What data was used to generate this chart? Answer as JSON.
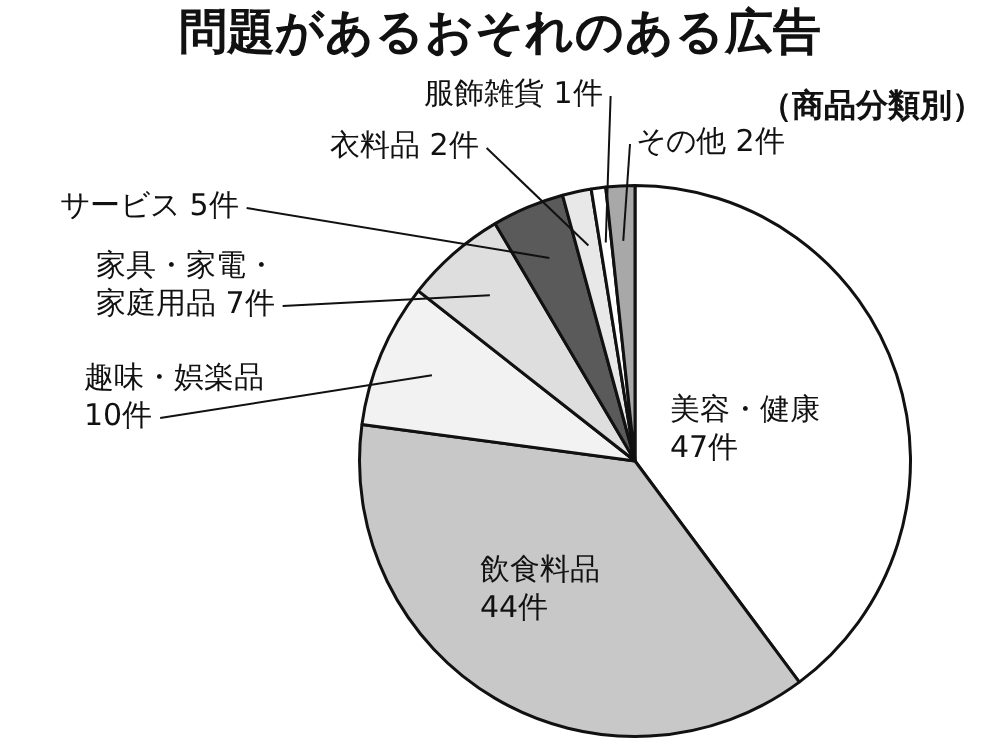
{
  "chart_data": {
    "type": "pie",
    "title": "問題があるおそれのある広告",
    "subtitle": "（商品分類別）",
    "categories": [
      "美容・健康",
      "飲食料品",
      "趣味・娯楽品",
      "家具・家電・家庭用品",
      "サービス",
      "衣料品",
      "服飾雑貨",
      "その他"
    ],
    "values": [
      47,
      44,
      10,
      7,
      5,
      2,
      1,
      2
    ],
    "value_labels": [
      "47件",
      "44件",
      "10件",
      "7件",
      "5件",
      "2件",
      "1件",
      "2件"
    ],
    "colors": [
      "#ffffff",
      "#c8c8c8",
      "#f2f2f2",
      "#dedede",
      "#5a5a5a",
      "#e8e8e8",
      "#ffffff",
      "#a8a8a8"
    ],
    "legend": false
  }
}
